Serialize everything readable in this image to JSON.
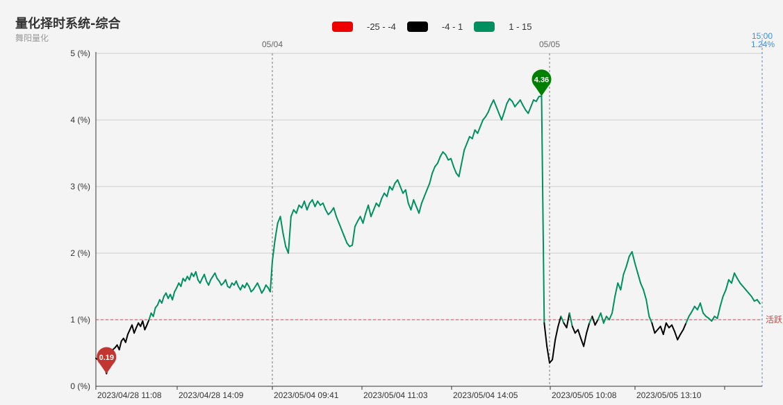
{
  "header": {
    "title": "量化择时系统-综合",
    "subtitle": "舞阳量化"
  },
  "legend": [
    {
      "label": "-25 - -4",
      "color": "#ee0000"
    },
    {
      "label": "-4 - 1",
      "color": "#000000"
    },
    {
      "label": "1 - 15",
      "color": "#009060"
    }
  ],
  "chart_data": {
    "type": "line",
    "title": "量化择时系统-综合",
    "subtitle": "舞阳量化",
    "ylim": [
      0,
      5
    ],
    "yticks": [
      "0 (%)",
      "1 (%)",
      "2 (%)",
      "3 (%)",
      "4 (%)",
      "5 (%)"
    ],
    "xticks": [
      "2023/04/28 11:08",
      "2023/04/28 14:09",
      "2023/05/04 09:41",
      "2023/05/04 11:03",
      "2023/05/04 14:05",
      "2023/05/05 10:08",
      "2023/05/05 13:10"
    ],
    "day_markers": [
      "05/04",
      "05/05"
    ],
    "current": {
      "time": "15:00",
      "value": "1.24%"
    },
    "reference_line": {
      "value": 1,
      "label": "活跃"
    },
    "markers": {
      "min": {
        "label": "0.19",
        "value": 0.19
      },
      "max": {
        "label": "4.36",
        "value": 4.36
      }
    },
    "pieces": [
      {
        "range": "-25 - -4",
        "color": "#ee0000"
      },
      {
        "range": "-4 - 1",
        "color": "#000000"
      },
      {
        "range": "1 - 15",
        "color": "#009060"
      }
    ],
    "series": [
      {
        "values": [
          0.42,
          0.4,
          0.45,
          0.38,
          0.3,
          0.19,
          0.35,
          0.48,
          0.55,
          0.58,
          0.62,
          0.55,
          0.68,
          0.72,
          0.66,
          0.78,
          0.85,
          0.92,
          0.8,
          0.88,
          0.95,
          0.9,
          0.98,
          0.85,
          0.92,
          1.0,
          1.1,
          1.05,
          1.18,
          1.22,
          1.3,
          1.25,
          1.35,
          1.4,
          1.32,
          1.38,
          1.3,
          1.42,
          1.48,
          1.55,
          1.5,
          1.62,
          1.58,
          1.65,
          1.6,
          1.7,
          1.65,
          1.72,
          1.6,
          1.55,
          1.62,
          1.68,
          1.58,
          1.52,
          1.6,
          1.65,
          1.7,
          1.62,
          1.58,
          1.52,
          1.55,
          1.6,
          1.5,
          1.48,
          1.55,
          1.52,
          1.58,
          1.5,
          1.45,
          1.52,
          1.48,
          1.55,
          1.5,
          1.42,
          1.45,
          1.5,
          1.55,
          1.48,
          1.4,
          1.45,
          1.52,
          1.48,
          1.42,
          1.88,
          2.2,
          2.45,
          2.55,
          2.3,
          2.1,
          2.0,
          2.55,
          2.65,
          2.6,
          2.72,
          2.68,
          2.78,
          2.65,
          2.75,
          2.8,
          2.7,
          2.78,
          2.72,
          2.75,
          2.65,
          2.58,
          2.62,
          2.68,
          2.55,
          2.45,
          2.35,
          2.25,
          2.15,
          2.1,
          2.12,
          2.4,
          2.48,
          2.55,
          2.45,
          2.6,
          2.72,
          2.55,
          2.65,
          2.75,
          2.7,
          2.82,
          2.9,
          2.85,
          3.0,
          2.95,
          3.05,
          3.1,
          3.0,
          2.9,
          2.95,
          2.75,
          2.65,
          2.8,
          2.7,
          2.6,
          2.75,
          2.85,
          2.95,
          3.05,
          3.2,
          3.3,
          3.35,
          3.45,
          3.52,
          3.48,
          3.4,
          3.42,
          3.3,
          3.2,
          3.15,
          3.35,
          3.55,
          3.65,
          3.75,
          3.72,
          3.85,
          3.8,
          3.9,
          4.0,
          4.05,
          4.12,
          4.22,
          4.3,
          4.2,
          4.1,
          4.0,
          4.12,
          4.25,
          4.32,
          4.28,
          4.2,
          4.25,
          4.3,
          4.22,
          4.15,
          4.1,
          4.2,
          4.3,
          4.28,
          4.35,
          4.36,
          0.95,
          0.6,
          0.35,
          0.4,
          0.7,
          0.9,
          1.05,
          0.95,
          0.88,
          1.1,
          0.9,
          0.8,
          0.85,
          0.72,
          0.6,
          0.8,
          0.95,
          1.05,
          0.92,
          1.0,
          1.1,
          0.95,
          1.05,
          1.0,
          1.1,
          1.35,
          1.55,
          1.45,
          1.68,
          1.8,
          1.95,
          2.02,
          1.85,
          1.7,
          1.55,
          1.45,
          1.3,
          1.05,
          0.95,
          0.8,
          0.85,
          0.9,
          0.78,
          0.95,
          0.88,
          0.92,
          0.82,
          0.7,
          0.78,
          0.85,
          0.95,
          1.05,
          1.12,
          1.2,
          1.15,
          1.25,
          1.1,
          1.05,
          1.02,
          0.98,
          1.05,
          1.02,
          1.2,
          1.35,
          1.45,
          1.6,
          1.55,
          1.7,
          1.62,
          1.55,
          1.5,
          1.45,
          1.4,
          1.35,
          1.28,
          1.3,
          1.24
        ]
      }
    ]
  }
}
